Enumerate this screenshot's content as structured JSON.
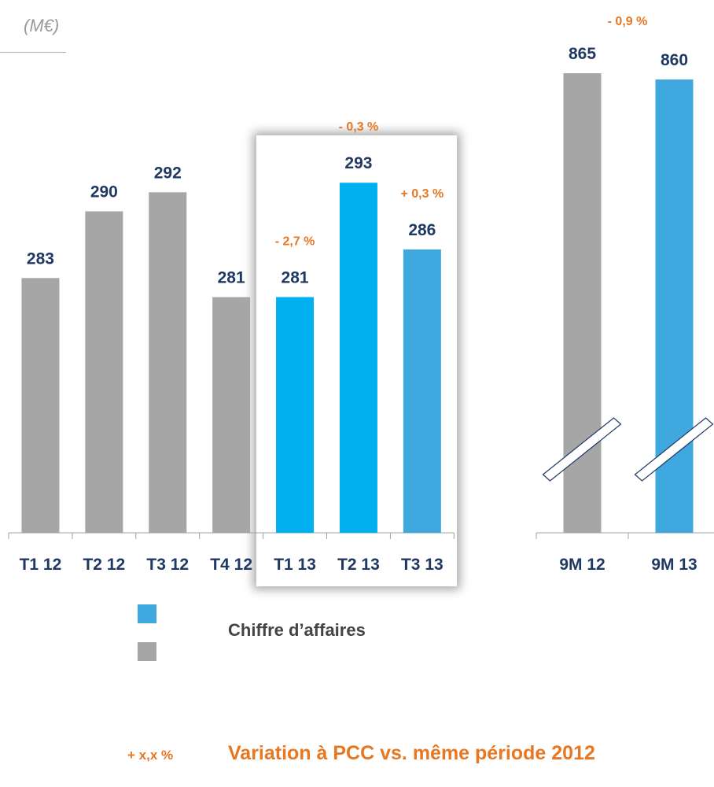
{
  "unit": "(M€)",
  "colors": {
    "prev": "#A6A6A6",
    "curr_bright": "#00B0F0",
    "curr": "#3FA9DF",
    "value": "#1F3864",
    "variation": "#E87722"
  },
  "legend": {
    "label": "Chiffre d’affaires",
    "variation_sample": "+ x,x %",
    "variation_label": "Variation à PCC vs. même période 2012"
  },
  "chart_data": [
    {
      "type": "bar",
      "title": "",
      "categories": [
        "T1 12",
        "T2 12",
        "T3 12",
        "T4 12",
        "T1 13",
        "T2 13",
        "T3 13"
      ],
      "values": [
        283,
        290,
        292,
        281,
        281,
        293,
        286
      ],
      "variations": [
        null,
        null,
        null,
        null,
        "- 2,7 %",
        "- 0,3 %",
        "+ 0,3 %"
      ],
      "bar_colors": [
        "#A6A6A6",
        "#A6A6A6",
        "#A6A6A6",
        "#A6A6A6",
        "#00B0F0",
        "#00B0F0",
        "#3FA9DF"
      ],
      "highlighted": [
        "T1 13",
        "T2 13",
        "T3 13"
      ],
      "ylim": [
        0,
        293
      ]
    },
    {
      "type": "bar",
      "title": "",
      "categories": [
        "9M 12",
        "9M 13"
      ],
      "values": [
        865,
        860
      ],
      "variation": "- 0,9 %",
      "bar_colors": [
        "#A6A6A6",
        "#3FA9DF"
      ],
      "axis_break": true,
      "ylim": [
        0,
        865
      ]
    }
  ]
}
